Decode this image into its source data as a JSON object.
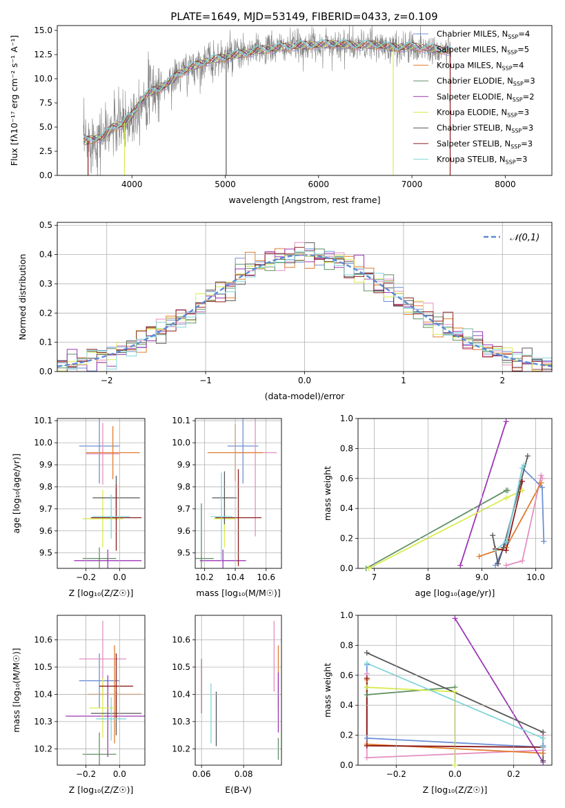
{
  "figure": {
    "title": "PLATE=1649, MJD=53149, FIBERID=0433, z=0.109"
  },
  "colors": {
    "Chabrier MILES": "#6b8fd6",
    "Salpeter MILES": "#e48fbf",
    "Kroupa MILES": "#e07b2a",
    "Chabrier ELODIE": "#5f8f63",
    "Salpeter ELODIE": "#9b35b5",
    "Kroupa ELODIE": "#d8ec4b",
    "Chabrier STELIB": "#555555",
    "Salpeter STELIB": "#8c1a1a",
    "Kroupa STELIB": "#7fd6d8"
  },
  "chart_data": [
    {
      "id": "spectrum",
      "type": "line",
      "xlabel": "wavelength [Angstrom, rest frame]",
      "ylabel": "Flux [fλ10⁻¹⁷ erg cm⁻² s⁻¹ A⁻¹]",
      "xlim": [
        3200,
        8500
      ],
      "ylim": [
        0,
        15.5
      ],
      "xticks": [
        4000,
        5000,
        6000,
        7000,
        8000
      ],
      "yticks": [
        0.0,
        2.5,
        5.0,
        7.5,
        10.0,
        12.5,
        15.0
      ],
      "legend_position": "top-right",
      "legend": [
        {
          "text": "Chabrier MILES, N",
          "sub": "SSP",
          "tail": "=4",
          "color_key": "Chabrier MILES"
        },
        {
          "text": "Salpeter MILES, N",
          "sub": "SSP",
          "tail": "=5",
          "color_key": "Salpeter MILES"
        },
        {
          "text": "Kroupa MILES, N",
          "sub": "SSP",
          "tail": "=4",
          "color_key": "Kroupa MILES"
        },
        {
          "text": "Chabrier ELODIE, N",
          "sub": "SSP",
          "tail": "=3",
          "color_key": "Chabrier ELODIE"
        },
        {
          "text": "Salpeter ELODIE, N",
          "sub": "SSP",
          "tail": "=2",
          "color_key": "Salpeter ELODIE"
        },
        {
          "text": "Kroupa ELODIE, N",
          "sub": "SSP",
          "tail": "=3",
          "color_key": "Kroupa ELODIE"
        },
        {
          "text": "Chabrier STELIB, N",
          "sub": "SSP",
          "tail": "=3",
          "color_key": "Chabrier STELIB"
        },
        {
          "text": "Salpeter STELIB, N",
          "sub": "SSP",
          "tail": "=3",
          "color_key": "Salpeter STELIB"
        },
        {
          "text": "Kroupa STELIB, N",
          "sub": "SSP",
          "tail": "=3",
          "color_key": "Kroupa STELIB"
        }
      ],
      "continuum": {
        "x": [
          3500,
          3600,
          3700,
          3800,
          3900,
          4000,
          4100,
          4200,
          4300,
          4400,
          4500,
          4600,
          4800,
          5000,
          5200,
          5400,
          5600,
          5800,
          6000,
          6200,
          6400,
          6600,
          6800,
          7000,
          7200,
          7400
        ],
        "y": [
          3.5,
          3.8,
          4.0,
          5.0,
          5.3,
          6.2,
          7.8,
          8.6,
          9.0,
          9.6,
          10.5,
          11.0,
          11.8,
          12.2,
          12.6,
          13.0,
          13.2,
          13.4,
          13.5,
          13.6,
          13.4,
          13.5,
          13.2,
          13.3,
          13.1,
          12.9
        ]
      },
      "drops": [
        {
          "x": 3530,
          "series": "Salpeter STELIB"
        },
        {
          "x": 3920,
          "series": "Kroupa ELODIE"
        },
        {
          "x": 6800,
          "series": "Kroupa ELODIE"
        },
        {
          "x": 7410,
          "series": "Salpeter STELIB"
        },
        {
          "x": 5010,
          "series": "Chabrier STELIB"
        }
      ]
    },
    {
      "id": "residuals",
      "type": "histogram",
      "xlabel": "(data-model)/error",
      "ylabel": "Normed distribution",
      "xlim": [
        -2.5,
        2.5
      ],
      "ylim": [
        0,
        0.51
      ],
      "xticks": [
        -2,
        -1,
        0,
        1,
        2
      ],
      "yticks": [
        0.0,
        0.1,
        0.2,
        0.3,
        0.4,
        0.5
      ],
      "reference_label": "𝒩(0,1)",
      "bin_width": 0.1
    },
    {
      "id": "age_vs_Z",
      "type": "scatter",
      "xlabel": "Z [log₁₀(Z/Z☉)]",
      "ylabel": "age  [log₁₀(age/yr)]",
      "xlim": [
        -0.37,
        0.15
      ],
      "ylim": [
        9.43,
        10.11
      ],
      "xticks": [
        -0.2,
        0.0
      ],
      "yticks": [
        9.5,
        9.6,
        9.7,
        9.8,
        9.9,
        10.0,
        10.1
      ],
      "points": [
        {
          "s": "Chabrier MILES",
          "x": -0.12,
          "xe": 0.12,
          "y": 9.985,
          "ye": 0.17
        },
        {
          "s": "Salpeter MILES",
          "x": -0.1,
          "xe": 0.1,
          "y": 9.95,
          "ye": 0.14
        },
        {
          "s": "Kroupa MILES",
          "x": -0.04,
          "xe": 0.16,
          "y": 9.955,
          "ye": 0.12
        },
        {
          "s": "Chabrier ELODIE",
          "x": -0.12,
          "xe": 0.1,
          "y": 9.475,
          "ye": 0.05
        },
        {
          "s": "Salpeter ELODIE",
          "x": -0.07,
          "xe": 0.2,
          "y": 9.465,
          "ye": 0.05
        },
        {
          "s": "Kroupa ELODIE",
          "x": -0.1,
          "xe": 0.12,
          "y": 9.655,
          "ye": 0.13
        },
        {
          "s": "Chabrier STELIB",
          "x": -0.02,
          "xe": 0.14,
          "y": 9.75,
          "ye": 0.1
        },
        {
          "s": "Salpeter STELIB",
          "x": -0.02,
          "xe": 0.15,
          "y": 9.66,
          "ye": 0.15
        },
        {
          "s": "Kroupa STELIB",
          "x": -0.05,
          "xe": 0.11,
          "y": 9.665,
          "ye": 0.1
        }
      ]
    },
    {
      "id": "age_vs_mass",
      "type": "scatter",
      "xlabel": "mass [log₁₀(M/M☉)]",
      "ylabel": "",
      "xlim": [
        10.14,
        10.7
      ],
      "ylim": [
        9.43,
        10.11
      ],
      "xticks": [
        10.2,
        10.4,
        10.6
      ],
      "yticks": [
        9.5,
        9.6,
        9.7,
        9.8,
        9.9,
        10.0,
        10.1
      ],
      "points": [
        {
          "s": "Chabrier MILES",
          "x": 10.45,
          "xe": 0.1,
          "y": 9.985,
          "ye": 0.17
        },
        {
          "s": "Salpeter MILES",
          "x": 10.53,
          "xe": 0.14,
          "y": 9.955,
          "ye": 0.38
        },
        {
          "s": "Kroupa MILES",
          "x": 10.4,
          "xe": 0.18,
          "y": 9.955,
          "ye": 0.13
        },
        {
          "s": "Chabrier ELODIE",
          "x": 10.18,
          "xe": 0.08,
          "y": 9.475,
          "ye": 0.25
        },
        {
          "s": "Salpeter ELODIE",
          "x": 10.32,
          "xe": 0.15,
          "y": 9.465,
          "ye": 0.05
        },
        {
          "s": "Kroupa ELODIE",
          "x": 10.33,
          "xe": 0.07,
          "y": 9.655,
          "ye": 0.13
        },
        {
          "s": "Chabrier STELIB",
          "x": 10.33,
          "xe": 0.08,
          "y": 9.75,
          "ye": 0.12
        },
        {
          "s": "Salpeter STELIB",
          "x": 10.42,
          "xe": 0.15,
          "y": 9.66,
          "ye": 0.22
        },
        {
          "s": "Kroupa STELIB",
          "x": 10.31,
          "xe": 0.07,
          "y": 9.665,
          "ye": 0.2
        }
      ]
    },
    {
      "id": "weight_vs_age",
      "type": "line",
      "xlabel": "age  [log₁₀(age/yr)]",
      "ylabel": "mass weight",
      "xlim": [
        6.7,
        10.3
      ],
      "ylim": [
        0,
        1.0
      ],
      "xticks": [
        7,
        8,
        9,
        10
      ],
      "yticks": [
        0.0,
        0.2,
        0.4,
        0.6,
        0.8,
        1.0
      ],
      "series": [
        {
          "s": "Chabrier MILES",
          "x": [
            9.25,
            9.45,
            9.75,
            10.12,
            10.15
          ],
          "y": [
            0.02,
            0.17,
            0.67,
            0.54,
            0.18
          ]
        },
        {
          "s": "Salpeter MILES",
          "x": [
            9.45,
            9.75,
            10.1,
            10.12
          ],
          "y": [
            0.02,
            0.05,
            0.62,
            0.6
          ]
        },
        {
          "s": "Kroupa MILES",
          "x": [
            8.95,
            9.45,
            10.1
          ],
          "y": [
            0.08,
            0.14,
            0.57
          ]
        },
        {
          "s": "Chabrier ELODIE",
          "x": [
            6.85,
            9.45,
            9.48
          ],
          "y": [
            0.0,
            0.52,
            0.52
          ]
        },
        {
          "s": "Salpeter ELODIE",
          "x": [
            8.6,
            9.45
          ],
          "y": [
            0.02,
            0.98
          ]
        },
        {
          "s": "Kroupa ELODIE",
          "x": [
            6.9,
            9.45,
            9.75
          ],
          "y": [
            0.0,
            0.47,
            0.52
          ]
        },
        {
          "s": "Chabrier STELIB",
          "x": [
            9.2,
            9.3,
            9.4,
            9.85
          ],
          "y": [
            0.22,
            0.03,
            0.14,
            0.75
          ]
        },
        {
          "s": "Salpeter STELIB",
          "x": [
            9.25,
            9.45,
            9.75
          ],
          "y": [
            0.13,
            0.12,
            0.58
          ]
        },
        {
          "s": "Kroupa STELIB",
          "x": [
            9.25,
            9.45,
            9.75,
            9.78
          ],
          "y": [
            0.12,
            0.18,
            0.67,
            0.69
          ]
        }
      ]
    },
    {
      "id": "mass_vs_Z",
      "type": "scatter",
      "xlabel": "Z [log₁₀(Z/Z☉)]",
      "ylabel": "mass [log₁₀(M/M☉)]",
      "xlim": [
        -0.37,
        0.15
      ],
      "ylim": [
        10.14,
        10.69
      ],
      "xticks": [
        -0.2,
        0.0
      ],
      "yticks": [
        10.2,
        10.3,
        10.4,
        10.5,
        10.6
      ],
      "points": [
        {
          "s": "Chabrier MILES",
          "x": -0.12,
          "xe": 0.12,
          "y": 10.45,
          "ye": 0.1
        },
        {
          "s": "Salpeter MILES",
          "x": -0.1,
          "xe": 0.14,
          "y": 10.53,
          "ye": 0.14
        },
        {
          "s": "Kroupa MILES",
          "x": -0.03,
          "xe": 0.16,
          "y": 10.4,
          "ye": 0.18
        },
        {
          "s": "Chabrier ELODIE",
          "x": -0.12,
          "xe": 0.1,
          "y": 10.18,
          "ye": 0.08
        },
        {
          "s": "Salpeter ELODIE",
          "x": -0.07,
          "xe": 0.25,
          "y": 10.32,
          "ye": 0.15
        },
        {
          "s": "Kroupa ELODIE",
          "x": -0.1,
          "xe": 0.08,
          "y": 10.35,
          "ye": 0.11
        },
        {
          "s": "Chabrier STELIB",
          "x": -0.02,
          "xe": 0.15,
          "y": 10.33,
          "ye": 0.08
        },
        {
          "s": "Salpeter STELIB",
          "x": -0.02,
          "xe": 0.1,
          "y": 10.43,
          "ye": 0.12
        },
        {
          "s": "Kroupa STELIB",
          "x": -0.05,
          "xe": 0.09,
          "y": 10.31,
          "ye": 0.08
        }
      ]
    },
    {
      "id": "mass_vs_EBV",
      "type": "scatter",
      "xlabel": "E(B-V)",
      "ylabel": "",
      "xlim": [
        0.057,
        0.098
      ],
      "ylim": [
        10.14,
        10.69
      ],
      "xticks": [
        0.06,
        0.08
      ],
      "yticks": [
        10.2,
        10.3,
        10.4,
        10.5,
        10.6
      ],
      "points": [
        {
          "s": "Salpeter STELIB",
          "x": 0.06,
          "xe": 0,
          "y": 10.43,
          "ye": 0.1
        },
        {
          "s": "Kroupa STELIB",
          "x": 0.0645,
          "xe": 0,
          "y": 10.33,
          "ye": 0.11
        },
        {
          "s": "Chabrier STELIB",
          "x": 0.067,
          "xe": 0,
          "y": 10.31,
          "ye": 0.1
        },
        {
          "s": "Salpeter MILES",
          "x": 0.0945,
          "xe": 0,
          "y": 10.54,
          "ye": 0.13
        },
        {
          "s": "Kroupa MILES",
          "x": 0.0965,
          "xe": 0,
          "y": 10.46,
          "ye": 0.12
        },
        {
          "s": "Salpeter ELODIE",
          "x": 0.0965,
          "xe": 0,
          "y": 10.37,
          "ye": 0.11
        },
        {
          "s": "Chabrier ELODIE",
          "x": 0.0965,
          "xe": 0,
          "y": 10.2,
          "ye": 0.04
        }
      ]
    },
    {
      "id": "weight_vs_Z",
      "type": "line",
      "xlabel": "Z [log₁₀(Z/Z☉)]",
      "ylabel": "mass weight",
      "xlim": [
        -0.33,
        0.33
      ],
      "ylim": [
        0,
        1.0
      ],
      "xticks": [
        -0.2,
        0.0,
        0.2
      ],
      "yticks": [
        0.0,
        0.2,
        0.4,
        0.6,
        0.8,
        1.0
      ],
      "series": [
        {
          "s": "Chabrier MILES",
          "x": [
            -0.3,
            -0.3,
            0.3,
            0.3
          ],
          "y": [
            0.67,
            0.18,
            0.12,
            0.13
          ]
        },
        {
          "s": "Salpeter MILES",
          "x": [
            -0.3,
            -0.3,
            0.3,
            0.3
          ],
          "y": [
            0.61,
            0.05,
            0.1,
            0.2
          ]
        },
        {
          "s": "Kroupa MILES",
          "x": [
            -0.3,
            -0.3,
            0.3
          ],
          "y": [
            0.57,
            0.14,
            0.08
          ]
        },
        {
          "s": "Chabrier ELODIE",
          "x": [
            -0.3,
            -0.3,
            0.0
          ],
          "y": [
            0.52,
            0.47,
            0.52
          ]
        },
        {
          "s": "Salpeter ELODIE",
          "x": [
            0.0,
            0.3
          ],
          "y": [
            0.98,
            0.02
          ]
        },
        {
          "s": "Kroupa ELODIE",
          "x": [
            -0.3,
            0.0,
            0.0
          ],
          "y": [
            0.52,
            0.49,
            0.0
          ]
        },
        {
          "s": "Chabrier STELIB",
          "x": [
            -0.3,
            0.3,
            0.3
          ],
          "y": [
            0.75,
            0.22,
            0.03
          ]
        },
        {
          "s": "Salpeter STELIB",
          "x": [
            -0.3,
            -0.3,
            0.3
          ],
          "y": [
            0.58,
            0.13,
            0.12
          ]
        },
        {
          "s": "Kroupa STELIB",
          "x": [
            -0.3,
            0.3,
            0.3
          ],
          "y": [
            0.68,
            0.18,
            0.12
          ]
        }
      ]
    }
  ]
}
